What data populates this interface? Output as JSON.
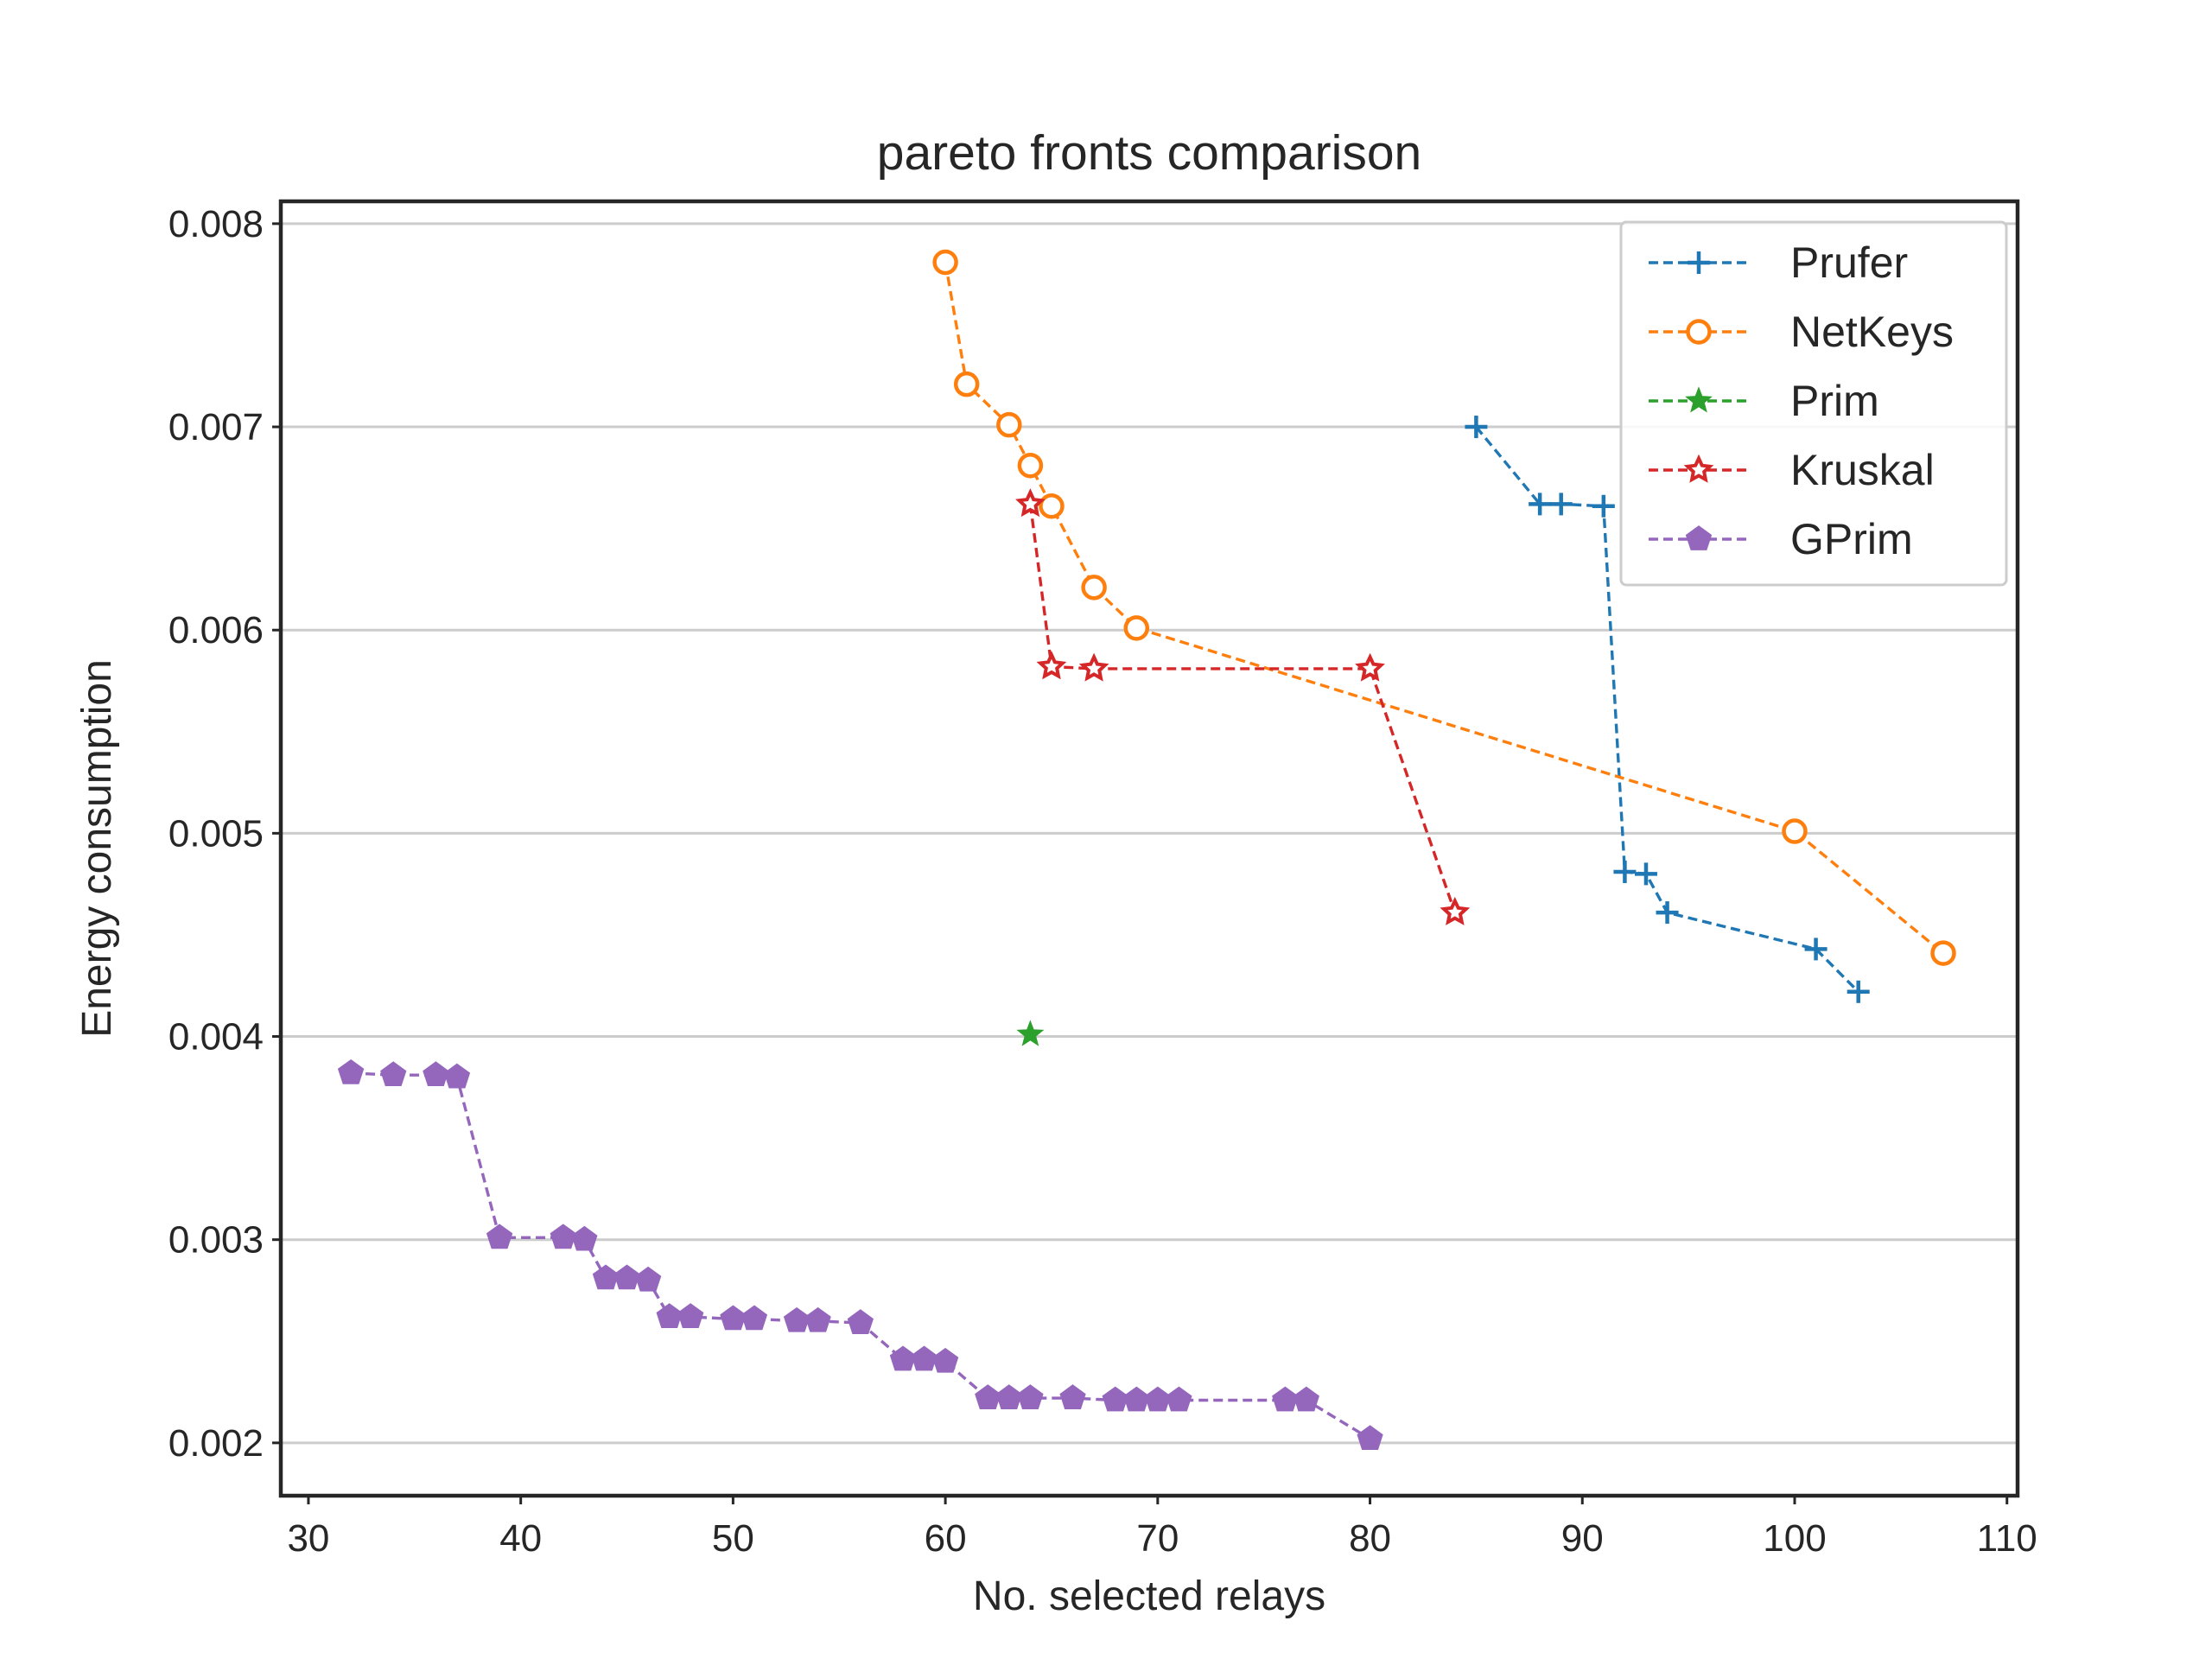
{
  "chart_data": {
    "type": "line",
    "title": "pareto fronts comparison",
    "xlabel": "No. selected relays",
    "ylabel": "Energy consumption",
    "xlim": [
      28.7,
      110.5
    ],
    "ylim": [
      0.00174,
      0.00811
    ],
    "xticks": [
      30,
      40,
      50,
      60,
      70,
      80,
      90,
      100,
      110
    ],
    "yticks": [
      0.002,
      0.003,
      0.004,
      0.005,
      0.006,
      0.007,
      0.008
    ],
    "xtick_labels": [
      "30",
      "40",
      "50",
      "60",
      "70",
      "80",
      "90",
      "100",
      "110"
    ],
    "ytick_labels": [
      "0.002",
      "0.003",
      "0.004",
      "0.005",
      "0.006",
      "0.007",
      "0.008"
    ],
    "grid": "horizontal",
    "legend_position": "top-right",
    "line_style": "dashed",
    "series": [
      {
        "name": "Prufer",
        "color": "#1f77b4",
        "marker": "plus",
        "x": [
          85,
          88,
          89,
          91,
          92,
          93,
          94,
          101,
          103
        ],
        "y": [
          0.007,
          0.00662,
          0.00662,
          0.00661,
          0.00481,
          0.0048,
          0.00461,
          0.00443,
          0.00422
        ]
      },
      {
        "name": "NetKeys",
        "color": "#ff7f0e",
        "marker": "circle",
        "x": [
          60,
          61,
          63,
          64,
          65,
          67,
          69,
          100,
          107
        ],
        "y": [
          0.00781,
          0.00721,
          0.00701,
          0.00681,
          0.00661,
          0.00621,
          0.00601,
          0.00501,
          0.00441
        ]
      },
      {
        "name": "Prim",
        "color": "#2ca02c",
        "marker": "star",
        "x": [
          64
        ],
        "y": [
          0.00401
        ]
      },
      {
        "name": "Kruskal",
        "color": "#d62728",
        "marker": "star-open",
        "x": [
          64,
          65,
          67,
          80,
          84
        ],
        "y": [
          0.00662,
          0.00582,
          0.00581,
          0.00581,
          0.00461
        ]
      },
      {
        "name": "GPrim",
        "color": "#9467bd",
        "marker": "pentagon",
        "x": [
          32,
          34,
          36,
          37,
          39,
          42,
          43,
          44,
          45,
          46,
          47,
          48,
          50,
          51,
          53,
          54,
          56,
          58,
          59,
          60,
          62,
          63,
          64,
          66,
          68,
          69,
          70,
          71,
          76,
          77,
          80
        ],
        "y": [
          0.00382,
          0.00381,
          0.00381,
          0.0038,
          0.00301,
          0.00301,
          0.003,
          0.00281,
          0.00281,
          0.0028,
          0.00262,
          0.00262,
          0.00261,
          0.00261,
          0.0026,
          0.0026,
          0.00259,
          0.00241,
          0.00241,
          0.0024,
          0.00222,
          0.00222,
          0.00222,
          0.00222,
          0.00221,
          0.00221,
          0.00221,
          0.00221,
          0.00221,
          0.00221,
          0.00202
        ]
      }
    ]
  }
}
